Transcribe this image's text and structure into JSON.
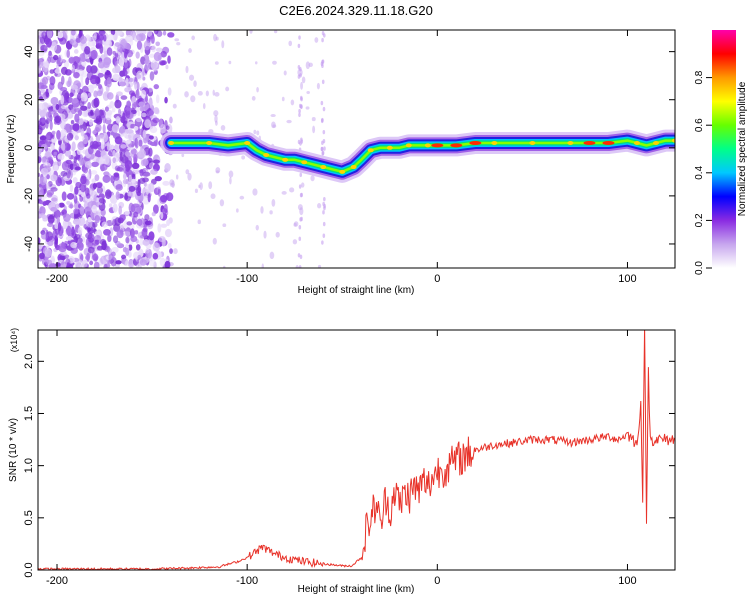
{
  "title": "C2E6.2024.329.11.18.G20",
  "chart_data": [
    {
      "type": "heatmap",
      "name": "spectrogram",
      "xlabel": "Height of straight line (km)",
      "ylabel": "Frequency (Hz)",
      "xlim": [
        -210,
        125
      ],
      "ylim": [
        -50,
        49
      ],
      "xticks": [
        -200,
        -100,
        0,
        100
      ],
      "xtick_labels": [
        "-200",
        "-100",
        "0",
        "100"
      ],
      "yticks": [
        -40,
        -20,
        0,
        20,
        40
      ],
      "ytick_labels": [
        "-40",
        "-20",
        "0",
        "20",
        "40"
      ],
      "colorbar": {
        "label": "Normalized spectral amplitude",
        "range": [
          0,
          1
        ],
        "ticks": [
          0.0,
          0.2,
          0.4,
          0.6,
          0.8
        ],
        "tick_labels": [
          "0.0",
          "0.2",
          "0.4",
          "0.6",
          "0.8"
        ],
        "colors": [
          "#ffffff",
          "#c7a6ee",
          "#8a2be2",
          "#0000ff",
          "#00c8ff",
          "#00ff88",
          "#66ff00",
          "#ffff00",
          "#ff9900",
          "#ff0000",
          "#ff00aa"
        ]
      },
      "noise_region_km": [
        -210,
        -140
      ],
      "ridge": {
        "x": [
          -140,
          -130,
          -120,
          -110,
          -100,
          -95,
          -90,
          -85,
          -80,
          -75,
          -70,
          -65,
          -60,
          -55,
          -50,
          -47,
          -44,
          -40,
          -35,
          -30,
          -25,
          -20,
          -15,
          -10,
          -5,
          0,
          10,
          20,
          30,
          40,
          50,
          60,
          70,
          80,
          90,
          100,
          105,
          110,
          115,
          120,
          125
        ],
        "y": [
          2,
          2,
          2,
          1,
          2,
          -1,
          -3,
          -4,
          -5,
          -5,
          -6,
          -7,
          -8,
          -9,
          -10,
          -9,
          -8,
          -5,
          -1,
          0,
          0,
          0,
          1,
          1,
          1,
          1,
          1,
          2,
          2,
          2,
          2,
          2,
          2,
          2,
          2,
          3,
          2,
          1,
          2,
          3,
          3
        ]
      }
    },
    {
      "type": "line",
      "name": "snr",
      "xlabel": "Height of straight line (km)",
      "ylabel": "SNR (10 * v/v)",
      "yscale_label": "(x10⁴)",
      "xlim": [
        -210,
        125
      ],
      "ylim": [
        0,
        2.3
      ],
      "xticks": [
        -200,
        -100,
        0,
        100
      ],
      "xtick_labels": [
        "-200",
        "-100",
        "0",
        "100"
      ],
      "yticks": [
        0.0,
        0.5,
        1.0,
        1.5,
        2.0
      ],
      "ytick_labels": [
        "0.0",
        "0.5",
        "1.0",
        "1.5",
        "2.0"
      ],
      "series": [
        {
          "color": "#e8332a",
          "x": [
            -210,
            -190,
            -170,
            -150,
            -130,
            -115,
            -105,
            -100,
            -95,
            -92,
            -88,
            -85,
            -80,
            -75,
            -70,
            -65,
            -60,
            -55,
            -50,
            -45,
            -40,
            -38,
            -35,
            -32,
            -30,
            -27,
            -25,
            -22,
            -20,
            -17,
            -15,
            -12,
            -10,
            -7,
            -5,
            -2,
            0,
            5,
            10,
            15,
            20,
            30,
            40,
            50,
            60,
            70,
            80,
            90,
            95,
            100,
            103,
            105,
            107,
            108,
            109,
            110,
            111,
            112,
            115,
            120,
            125
          ],
          "y": [
            0.01,
            0.01,
            0.01,
            0.01,
            0.02,
            0.03,
            0.08,
            0.12,
            0.18,
            0.22,
            0.18,
            0.15,
            0.12,
            0.1,
            0.08,
            0.07,
            0.06,
            0.05,
            0.04,
            0.04,
            0.12,
            0.35,
            0.5,
            0.65,
            0.4,
            0.7,
            0.55,
            0.8,
            0.6,
            0.75,
            0.7,
            0.8,
            0.75,
            0.85,
            0.8,
            0.9,
            0.95,
            0.98,
            1.05,
            1.1,
            1.15,
            1.2,
            1.22,
            1.25,
            1.25,
            1.22,
            1.25,
            1.28,
            1.25,
            1.3,
            1.25,
            1.2,
            1.6,
            0.7,
            2.3,
            0.5,
            1.9,
            1.25,
            1.25,
            1.25,
            1.25
          ]
        }
      ]
    }
  ]
}
